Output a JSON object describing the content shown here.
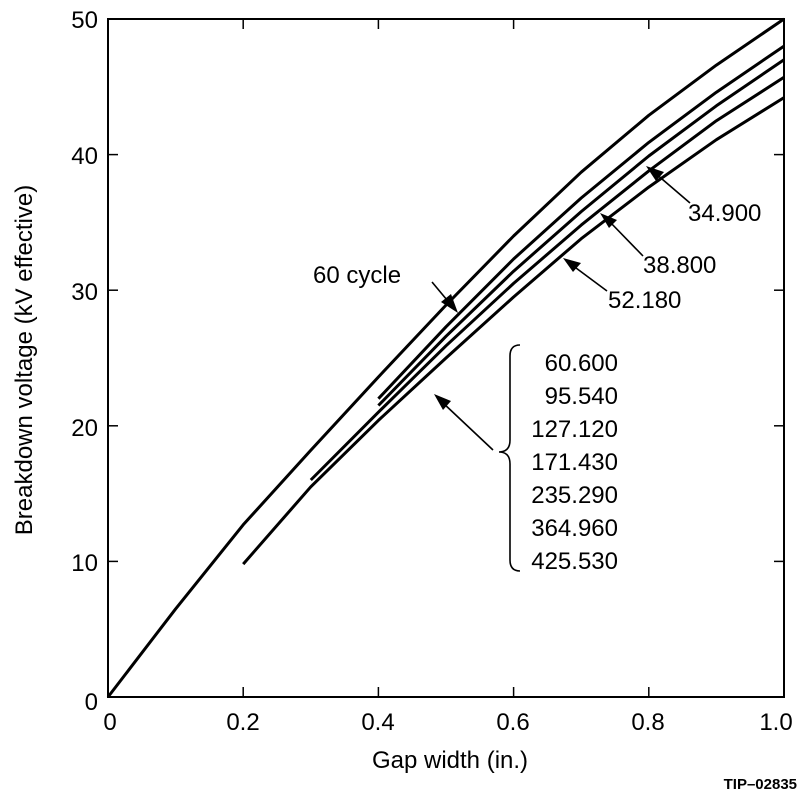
{
  "chart_data": {
    "type": "line",
    "title": "",
    "xlabel": "Gap width (in.)",
    "ylabel": "Breakdown voltage (kV effective)",
    "xlim": [
      0,
      1.0
    ],
    "ylim": [
      0,
      50
    ],
    "xticks": [
      "0",
      "0.2",
      "0.4",
      "0.6",
      "0.8",
      "1.0"
    ],
    "yticks": [
      "0",
      "10",
      "20",
      "30",
      "40",
      "50"
    ],
    "grid": false,
    "series": [
      {
        "name": "60 cycle",
        "x": [
          0,
          0.1,
          0.2,
          0.3,
          0.4,
          0.5,
          0.6,
          0.7,
          0.8,
          0.9,
          1.0
        ],
        "y": [
          0,
          6.5,
          12.7,
          18.2,
          23.6,
          28.9,
          34.0,
          38.7,
          42.9,
          46.6,
          50.0
        ]
      },
      {
        "name": "34.900",
        "x": [
          0.4,
          0.5,
          0.6,
          0.7,
          0.8,
          0.9,
          1.0
        ],
        "y": [
          22.0,
          27.3,
          32.3,
          36.8,
          40.9,
          44.6,
          48.0
        ]
      },
      {
        "name": "38.800",
        "x": [
          0.4,
          0.5,
          0.6,
          0.7,
          0.8,
          0.9,
          1.0
        ],
        "y": [
          21.5,
          26.6,
          31.4,
          35.8,
          39.9,
          43.6,
          47.0
        ]
      },
      {
        "name": "52.180",
        "x": [
          0.3,
          0.4,
          0.5,
          0.6,
          0.7,
          0.8,
          0.9,
          1.0
        ],
        "y": [
          16.0,
          21.0,
          25.9,
          30.5,
          34.8,
          38.8,
          42.5,
          45.7
        ]
      },
      {
        "name": "",
        "x": [
          0.2,
          0.3,
          0.4,
          0.5,
          0.6,
          0.7,
          0.8,
          0.9,
          1.0
        ],
        "y": [
          9.8,
          15.5,
          20.4,
          25.0,
          29.5,
          33.8,
          37.6,
          41.1,
          44.2
        ]
      }
    ],
    "annotations": {
      "sixty_cycle": "60 cycle",
      "label_a": "34.900",
      "label_b": "38.800",
      "label_c": "52.180",
      "bracket_values": [
        "60.600",
        "95.540",
        "127.120",
        "171.430",
        "235.290",
        "364.960",
        "425.530"
      ]
    }
  },
  "figure_id": "TIP–02835"
}
